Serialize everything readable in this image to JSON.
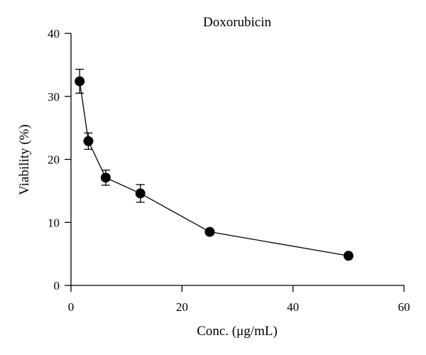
{
  "chart_data": {
    "type": "scatter",
    "title": "Doxorubicin",
    "xlabel": "Conc. (μg/mL)",
    "ylabel": "Viability (%)",
    "xlim": [
      0,
      60
    ],
    "ylim": [
      0,
      40
    ],
    "xticks": [
      0,
      20,
      40,
      60
    ],
    "yticks": [
      0,
      10,
      20,
      30,
      40
    ],
    "grid": false,
    "connected": true,
    "error_bars": true,
    "series": [
      {
        "x": [
          1.56,
          3.13,
          6.25,
          12.5,
          25,
          50
        ],
        "y": [
          32.4,
          22.9,
          17.1,
          14.6,
          8.5,
          4.7
        ],
        "error": [
          1.9,
          1.3,
          1.2,
          1.4,
          0,
          0
        ]
      }
    ],
    "colors": {
      "marker": "#000000",
      "line": "#000000"
    }
  }
}
